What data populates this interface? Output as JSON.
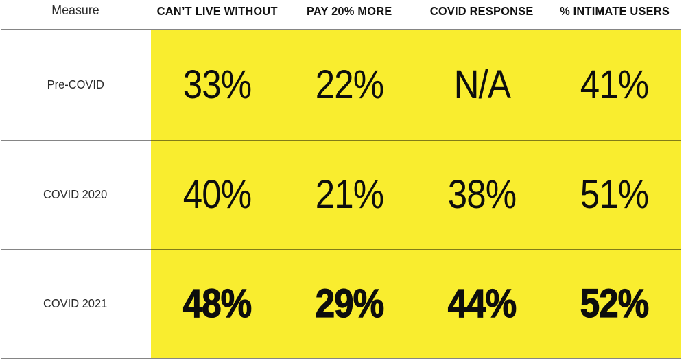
{
  "table": {
    "header": {
      "measure_label": "Measure",
      "columns": [
        "CAN’T LIVE WITHOUT",
        "PAY 20% MORE",
        "COVID RESPONSE",
        "% INTIMATE USERS"
      ]
    },
    "rows": [
      {
        "label": "Pre-COVID",
        "values": [
          "33%",
          "22%",
          "N/A",
          "41%"
        ],
        "emphasized": false
      },
      {
        "label": "COVID 2020",
        "values": [
          "40%",
          "21%",
          "38%",
          "51%"
        ],
        "emphasized": false
      },
      {
        "label": "COVID 2021",
        "values": [
          "48%",
          "29%",
          "44%",
          "52%"
        ],
        "emphasized": true
      }
    ]
  },
  "colors": {
    "highlight_yellow": "#F9ED2F",
    "text_black": "#0D0D0D",
    "rule_gray": "rgba(0,0,0,0.48)"
  },
  "chart_data": {
    "type": "table",
    "columns": [
      "Measure",
      "CAN’T LIVE WITHOUT",
      "PAY 20% MORE",
      "COVID RESPONSE",
      "% INTIMATE USERS"
    ],
    "rows": [
      [
        "Pre-COVID",
        "33%",
        "22%",
        "N/A",
        "41%"
      ],
      [
        "COVID 2020",
        "40%",
        "21%",
        "38%",
        "51%"
      ],
      [
        "COVID 2021",
        "48%",
        "29%",
        "44%",
        "52%"
      ]
    ],
    "values_numeric": [
      {
        "measure": "Pre-COVID",
        "cant_live_without": 33,
        "pay_20_more": 22,
        "covid_response": null,
        "pct_intimate_users": 41
      },
      {
        "measure": "COVID 2020",
        "cant_live_without": 40,
        "pay_20_more": 21,
        "covid_response": 38,
        "pct_intimate_users": 51
      },
      {
        "measure": "COVID 2021",
        "cant_live_without": 48,
        "pay_20_more": 29,
        "covid_response": 44,
        "pct_intimate_users": 52
      }
    ],
    "layout": {
      "highlighted_area": "data columns have yellow background",
      "emphasized_row": "COVID 2021 values in heavy bold",
      "gridlines": "horizontal rules below header and between each row and at bottom"
    }
  }
}
